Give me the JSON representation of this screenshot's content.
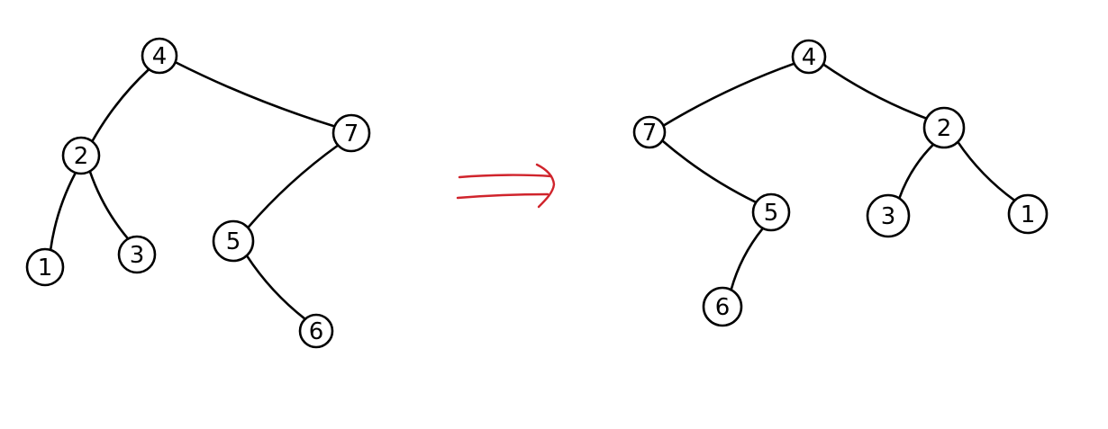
{
  "diagram": {
    "trees": [
      {
        "id": "original",
        "nodes": [
          {
            "id": "n4",
            "label": "4"
          },
          {
            "id": "n2",
            "label": "2"
          },
          {
            "id": "n7",
            "label": "7"
          },
          {
            "id": "n1",
            "label": "1"
          },
          {
            "id": "n3",
            "label": "3"
          },
          {
            "id": "n5",
            "label": "5"
          },
          {
            "id": "n6",
            "label": "6"
          }
        ],
        "edges": [
          {
            "from": "n4",
            "to": "n2"
          },
          {
            "from": "n4",
            "to": "n7"
          },
          {
            "from": "n2",
            "to": "n1"
          },
          {
            "from": "n2",
            "to": "n3"
          },
          {
            "from": "n7",
            "to": "n5"
          },
          {
            "from": "n5",
            "to": "n6"
          }
        ]
      },
      {
        "id": "mirrored",
        "nodes": [
          {
            "id": "m4",
            "label": "4"
          },
          {
            "id": "m7",
            "label": "7"
          },
          {
            "id": "m2",
            "label": "2"
          },
          {
            "id": "m5",
            "label": "5"
          },
          {
            "id": "m3",
            "label": "3"
          },
          {
            "id": "m1",
            "label": "1"
          },
          {
            "id": "m6",
            "label": "6"
          }
        ],
        "edges": [
          {
            "from": "m4",
            "to": "m7"
          },
          {
            "from": "m4",
            "to": "m2"
          },
          {
            "from": "m7",
            "to": "m5"
          },
          {
            "from": "m5",
            "to": "m6"
          },
          {
            "from": "m2",
            "to": "m3"
          },
          {
            "from": "m2",
            "to": "m1"
          }
        ]
      }
    ],
    "arrow_color": "#d0242c",
    "line_color": "#000000"
  }
}
